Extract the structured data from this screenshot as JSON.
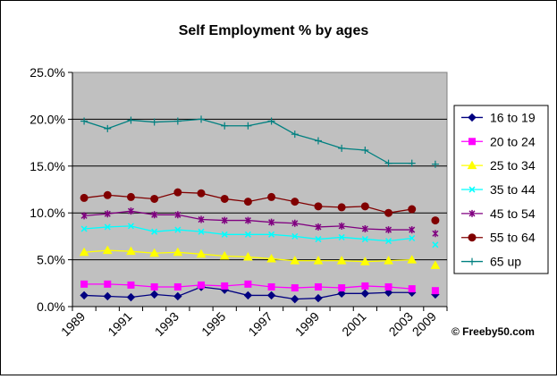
{
  "chart_data": {
    "type": "line",
    "title": "Self Employment % by ages",
    "xlabel": "",
    "ylabel": "",
    "ylim": [
      0,
      25
    ],
    "yticks": [
      "0.0%",
      "5.0%",
      "10.0%",
      "15.0%",
      "20.0%",
      "25.0%"
    ],
    "grid": true,
    "legend_position": "right",
    "plot_background": "#c0c0c0",
    "categories": [
      "1989",
      "1990",
      "1991",
      "1992",
      "1993",
      "1994",
      "1995",
      "1996",
      "1997",
      "1998",
      "1999",
      "2000",
      "2001",
      "2002",
      "2003",
      "2009"
    ],
    "x_tick_labels": [
      "1989",
      "1991",
      "1993",
      "1995",
      "1997",
      "1999",
      "2001",
      "2003",
      "2009"
    ],
    "x_tick_indices": [
      0,
      2,
      4,
      6,
      8,
      10,
      12,
      14,
      15
    ],
    "series": [
      {
        "name": "16 to 19",
        "color": "#000080",
        "marker": "diamond",
        "values": [
          1.2,
          1.1,
          1.0,
          1.3,
          1.1,
          2.1,
          1.8,
          1.2,
          1.2,
          0.8,
          0.9,
          1.4,
          1.4,
          1.5,
          1.5,
          1.3
        ]
      },
      {
        "name": "20 to 24",
        "color": "#ff00ff",
        "marker": "square",
        "values": [
          2.4,
          2.4,
          2.3,
          2.1,
          2.1,
          2.3,
          2.2,
          2.4,
          2.1,
          2.0,
          2.1,
          2.0,
          2.2,
          2.1,
          1.9,
          1.7
        ]
      },
      {
        "name": "25 to 34",
        "color": "#ffff00",
        "marker": "triangle",
        "values": [
          5.8,
          6.0,
          5.9,
          5.7,
          5.8,
          5.6,
          5.4,
          5.3,
          5.1,
          4.9,
          4.9,
          4.9,
          4.8,
          4.9,
          5.0,
          4.4
        ]
      },
      {
        "name": "35 to 44",
        "color": "#00ffff",
        "marker": "x",
        "values": [
          8.3,
          8.5,
          8.6,
          8.0,
          8.2,
          8.0,
          7.7,
          7.7,
          7.7,
          7.5,
          7.2,
          7.4,
          7.2,
          7.0,
          7.3,
          6.6
        ]
      },
      {
        "name": "45 to 54",
        "color": "#800080",
        "marker": "star",
        "values": [
          9.7,
          9.9,
          10.2,
          9.8,
          9.8,
          9.3,
          9.2,
          9.2,
          9.0,
          8.9,
          8.5,
          8.6,
          8.3,
          8.2,
          8.2,
          7.8
        ]
      },
      {
        "name": "55 to 64",
        "color": "#800000",
        "marker": "circle",
        "values": [
          11.6,
          11.9,
          11.7,
          11.5,
          12.2,
          12.1,
          11.5,
          11.2,
          11.7,
          11.2,
          10.7,
          10.6,
          10.7,
          10.0,
          10.4,
          9.2
        ]
      },
      {
        "name": "65 up",
        "color": "#008080",
        "marker": "plus",
        "values": [
          19.8,
          19.0,
          19.9,
          19.7,
          19.8,
          20.0,
          19.3,
          19.3,
          19.8,
          18.4,
          17.7,
          16.9,
          16.7,
          15.3,
          15.3,
          15.2
        ]
      }
    ],
    "annotation": "© Freeby50.com"
  }
}
